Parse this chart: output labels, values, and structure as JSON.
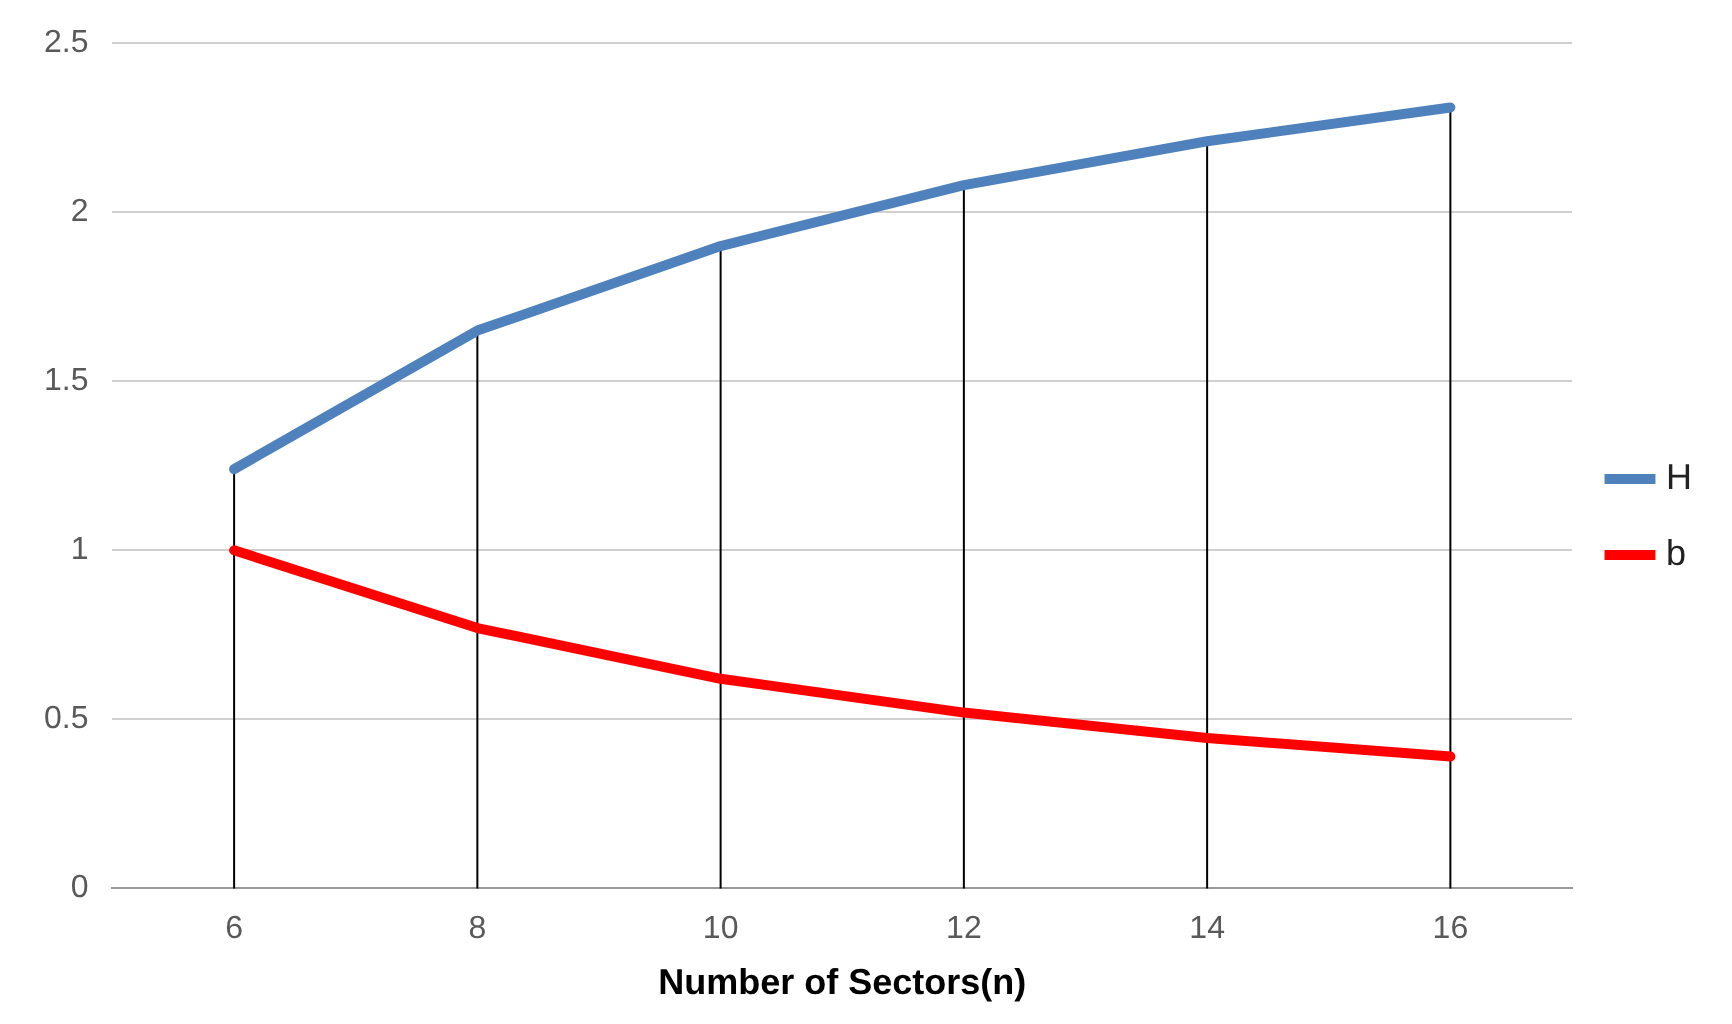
{
  "chart_data": {
    "type": "line",
    "xlabel": "Number of Sectors(n)",
    "categories": [
      "6",
      "8",
      "10",
      "12",
      "14",
      "16"
    ],
    "series": [
      {
        "name": "H",
        "color": "#4f81bd",
        "values": [
          1.24,
          1.65,
          1.9,
          2.08,
          2.21,
          2.31
        ]
      },
      {
        "name": "b",
        "color": "#ff0000",
        "values": [
          1.0,
          0.77,
          0.62,
          0.52,
          0.445,
          0.39
        ]
      }
    ],
    "ylim": [
      0,
      2.5
    ],
    "yticks": [
      0,
      0.5,
      1,
      1.5,
      2,
      2.5
    ],
    "grid": "y",
    "legend": "right",
    "marker": "none",
    "ref_lines": [
      {
        "axis": "x",
        "value": "6",
        "color": "#000000"
      },
      {
        "axis": "x",
        "value": "8",
        "color": "#000000"
      },
      {
        "axis": "x",
        "value": "10",
        "color": "#000000"
      },
      {
        "axis": "x",
        "value": "12",
        "color": "#000000"
      },
      {
        "axis": "x",
        "value": "14",
        "color": "#000000"
      },
      {
        "axis": "x",
        "value": "16",
        "color": "#000000"
      }
    ]
  }
}
